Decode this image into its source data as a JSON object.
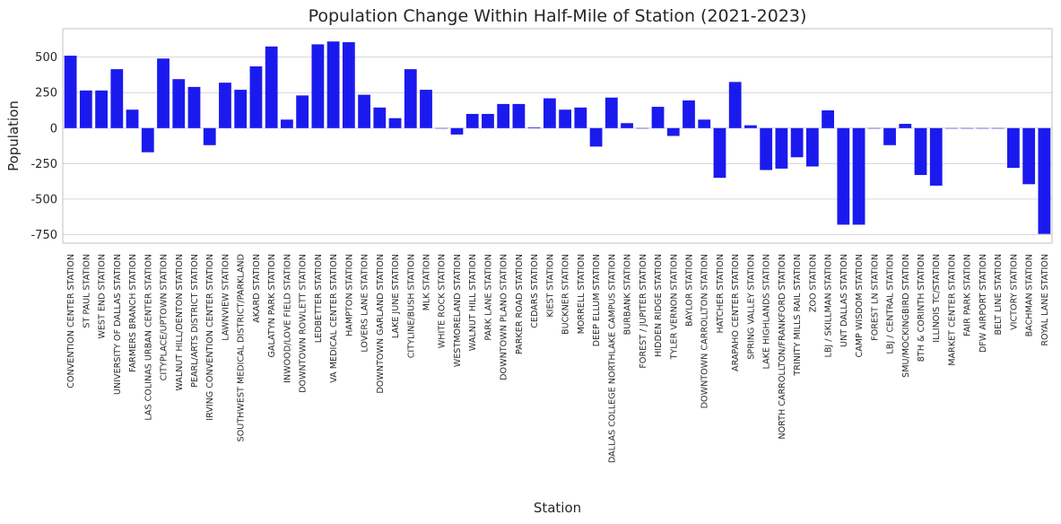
{
  "chart_data": {
    "type": "bar",
    "title": "Population Change Within Half-Mile of Station (2021-2023)",
    "xlabel": "Station",
    "ylabel": "Population",
    "ylim": [
      -810,
      700
    ],
    "yticks": [
      -750,
      -500,
      -250,
      0,
      250,
      500
    ],
    "grid": "horizontal",
    "bar_color": "#1a1aee",
    "categories": [
      "CONVENTION CENTER STATION",
      "ST PAUL STATION",
      "WEST END STATION",
      "UNIVERSITY OF DALLAS STATION",
      "FARMERS BRANCH STATION",
      "LAS COLINAS URBAN CENTER STATION",
      "CITYPLACE/UPTOWN STATION",
      "WALNUT HILL/DENTON STATION",
      "PEARL/ARTS DISTRICT STATION",
      "IRVING CONVENTION CENTER STATION",
      "LAWNVIEW STATION",
      "SOUTHWEST MEDICAL DISTRICT/PARKLAND",
      "AKARD STATION",
      "GALATYN PARK STATION",
      "INWOOD/LOVE FIELD STATION",
      "DOWNTOWN ROWLETT STATION",
      "LEDBETTER STATION",
      "VA MEDICAL CENTER STATION",
      "HAMPTON STATION",
      "LOVERS LANE STATION",
      "DOWNTOWN GARLAND STATION",
      "LAKE JUNE STATION",
      "CITYLINE/BUSH STATION",
      "MLK STATION",
      "WHITE ROCK STATION",
      "WESTMORELAND STATION",
      "WALNUT HILL STATION",
      "PARK LANE STATION",
      "DOWNTOWN PLANO STATION",
      "PARKER ROAD STATION",
      "CEDARS STATION",
      "KIEST STATION",
      "BUCKNER STATION",
      "MORRELL STATION",
      "DEEP ELLUM STATION",
      "DALLAS COLLEGE NORTHLAKE CAMPUS STATION",
      "BURBANK STATION",
      "FOREST / JUPITER STATION",
      "HIDDEN RIDGE STATION",
      "TYLER VERNON STATION",
      "BAYLOR STATION",
      "DOWNTOWN CARROLLTON STATION",
      "HATCHER STATION",
      "ARAPAHO CENTER STATION",
      "SPRING VALLEY STATION",
      "LAKE HIGHLANDS STATION",
      "NORTH CARROLLTON/FRANKFORD STATION",
      "TRINITY MILLS RAIL STATION",
      "ZOO STATION",
      "LBJ / SKILLMAN STATION",
      "UNT DALLAS STATION",
      "CAMP WISDOM STATION",
      "FOREST LN STATION",
      "LBJ / CENTRAL STATION",
      "SMU/MOCKINGBIRD STATION",
      "8TH & CORINTH STATION",
      "ILLINOIS TC/STATION",
      "MARKET CENTER STATION",
      "FAIR PARK STATION",
      "DFW AIRPORT STATION",
      "BELT LINE STATION",
      "VICTORY STATION",
      "BACHMAN STATION",
      "ROYAL LANE STATION"
    ],
    "values": [
      510,
      265,
      265,
      415,
      130,
      -170,
      490,
      345,
      290,
      -120,
      320,
      270,
      435,
      575,
      60,
      230,
      590,
      610,
      605,
      235,
      145,
      70,
      415,
      270,
      0,
      -45,
      100,
      100,
      170,
      170,
      5,
      210,
      130,
      145,
      -130,
      215,
      35,
      0,
      150,
      -55,
      195,
      60,
      -350,
      325,
      20,
      -295,
      -285,
      -205,
      -270,
      125,
      -680,
      -680,
      0,
      -120,
      30,
      -330,
      -405,
      0,
      0,
      0,
      0,
      -280,
      -395,
      -745
    ]
  }
}
